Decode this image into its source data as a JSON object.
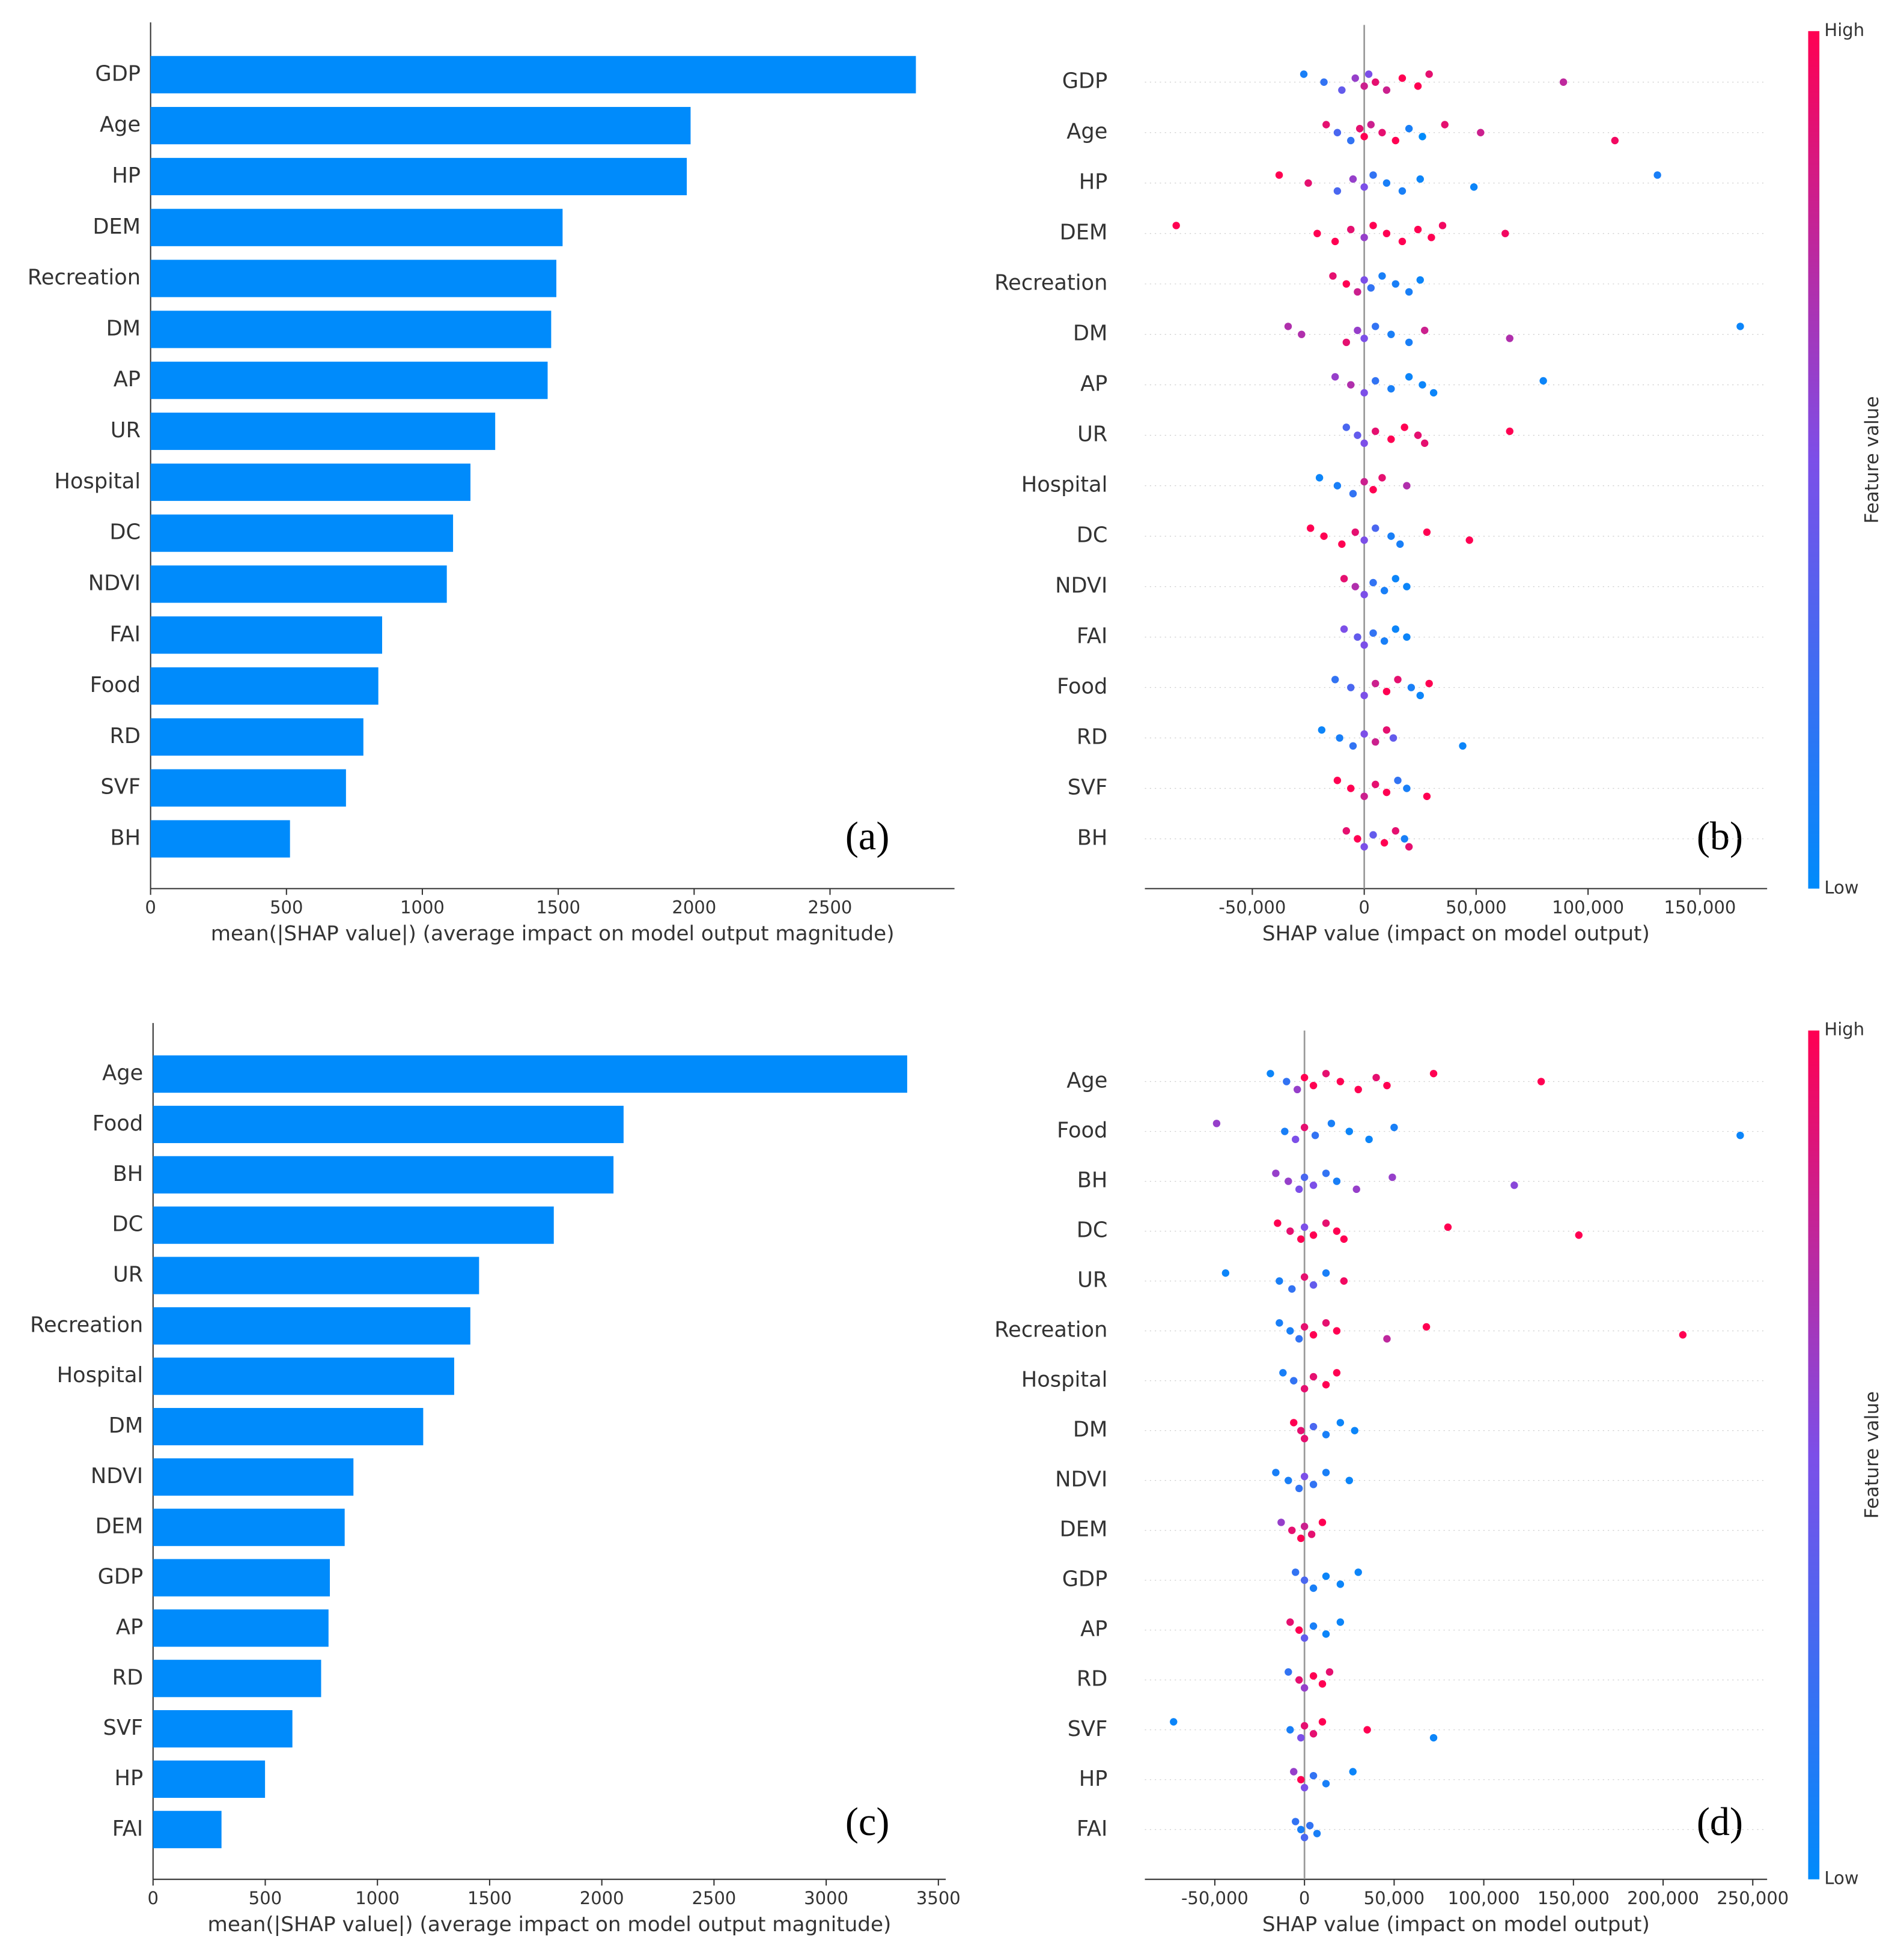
{
  "chart_data": [
    {
      "type": "bar",
      "annotation": "(a)",
      "xlabel": "mean(|SHAP value|) (average impact on model output magnitude)",
      "color": "#008bfb",
      "categories": [
        "GDP",
        "Age",
        "HP",
        "DEM",
        "Recreation",
        "DM",
        "AP",
        "UR",
        "Hospital",
        "DC",
        "NDVI",
        "FAI",
        "Food",
        "RD",
        "SVF",
        "BH"
      ],
      "values": [
        2816,
        1987,
        1973,
        1516,
        1493,
        1474,
        1461,
        1268,
        1177,
        1113,
        1090,
        852,
        838,
        783,
        719,
        513
      ],
      "xlim": [
        0,
        2958
      ],
      "xticks": [
        0,
        500,
        1000,
        1500,
        2000,
        2500
      ]
    },
    {
      "type": "beeswarm",
      "annotation": "(b)",
      "xlabel": "SHAP value (impact on model output)",
      "colorbar_label": "Feature value",
      "colorbar_high": "High",
      "colorbar_low": "Low",
      "colormap": [
        "#008bfb",
        "#7c4fe8",
        "#ff0052"
      ],
      "xlim": [
        -98000,
        180000
      ],
      "xticks": [
        {
          "value": -50000,
          "label": "-50,000"
        },
        0,
        {
          "value": 50000,
          "label": "50,000"
        },
        {
          "value": 100000,
          "label": "100,000"
        },
        {
          "value": 150000,
          "label": "150,000"
        }
      ],
      "rows": [
        {
          "name": "GDP",
          "x": [
            -27000,
            -18000,
            -10000,
            -4000,
            0,
            2000,
            5000,
            10000,
            17000,
            24000,
            29000,
            89000
          ],
          "feature_values": [
            0.1,
            0.2,
            0.4,
            0.6,
            0.8,
            0.5,
            0.9,
            0.8,
            1,
            1,
            0.9,
            0.75
          ]
        },
        {
          "name": "Age",
          "x": [
            -17000,
            -12000,
            -6000,
            -2000,
            0,
            3000,
            8000,
            14000,
            20000,
            26000,
            36000,
            52000,
            112000
          ],
          "feature_values": [
            0.9,
            0.3,
            0.2,
            0.9,
            1,
            0.8,
            0.9,
            1,
            0.1,
            0,
            0.9,
            0.8,
            0.95
          ]
        },
        {
          "name": "HP",
          "x": [
            -38000,
            -25000,
            -12000,
            -5000,
            0,
            4000,
            10000,
            17000,
            25000,
            49000,
            131000
          ],
          "feature_values": [
            1,
            0.9,
            0.3,
            0.6,
            0.5,
            0.2,
            0.1,
            0.1,
            0.05,
            0.05,
            0.1
          ]
        },
        {
          "name": "DEM",
          "x": [
            -84000,
            -21000,
            -13000,
            -6000,
            0,
            4000,
            10000,
            17000,
            24000,
            30000,
            35000,
            63000
          ],
          "feature_values": [
            1,
            1,
            1,
            0.9,
            0.6,
            1,
            1,
            1,
            1,
            1,
            0.95,
            0.95
          ]
        },
        {
          "name": "Recreation",
          "x": [
            -14000,
            -8000,
            -3000,
            0,
            3000,
            8000,
            14000,
            20000,
            25000
          ],
          "feature_values": [
            0.9,
            1,
            0.8,
            0.5,
            0.2,
            0.1,
            0.1,
            0.1,
            0.05
          ]
        },
        {
          "name": "DM",
          "x": [
            -34000,
            -28000,
            -8000,
            -3000,
            0,
            5000,
            12000,
            20000,
            27000,
            65000,
            168000
          ],
          "feature_values": [
            0.7,
            0.7,
            0.9,
            0.6,
            0.5,
            0.2,
            0.1,
            0.1,
            0.8,
            0.7,
            0.05
          ]
        },
        {
          "name": "AP",
          "x": [
            -13000,
            -6000,
            0,
            5000,
            12000,
            20000,
            26000,
            31000,
            80000
          ],
          "feature_values": [
            0.6,
            0.7,
            0.5,
            0.2,
            0.1,
            0.05,
            0.05,
            0.05,
            0.05
          ]
        },
        {
          "name": "UR",
          "x": [
            -8000,
            -3000,
            0,
            5000,
            12000,
            18000,
            24000,
            27000,
            65000
          ],
          "feature_values": [
            0.3,
            0.4,
            0.5,
            0.9,
            1,
            1,
            0.9,
            0.9,
            1
          ]
        },
        {
          "name": "Hospital",
          "x": [
            -20000,
            -12000,
            -5000,
            0,
            4000,
            8000,
            19000
          ],
          "feature_values": [
            0.05,
            0.1,
            0.2,
            0.8,
            1,
            0.9,
            0.7
          ]
        },
        {
          "name": "DC",
          "x": [
            -24000,
            -18000,
            -10000,
            -4000,
            0,
            5000,
            12000,
            16000,
            28000,
            47000
          ],
          "feature_values": [
            1,
            1,
            1,
            0.9,
            0.5,
            0.3,
            0.1,
            0.1,
            1,
            1
          ]
        },
        {
          "name": "NDVI",
          "x": [
            -9000,
            -4000,
            0,
            4000,
            9000,
            14000,
            19000
          ],
          "feature_values": [
            0.9,
            0.7,
            0.5,
            0.2,
            0.1,
            0.05,
            0.05
          ]
        },
        {
          "name": "FAI",
          "x": [
            -9000,
            -3000,
            0,
            4000,
            9000,
            14000,
            19000
          ],
          "feature_values": [
            0.5,
            0.4,
            0.5,
            0.2,
            0.1,
            0.05,
            0.05
          ]
        },
        {
          "name": "Food",
          "x": [
            -13000,
            -6000,
            0,
            5000,
            10000,
            15000,
            21000,
            25000,
            29000
          ],
          "feature_values": [
            0.2,
            0.3,
            0.5,
            0.8,
            1,
            0.9,
            0.1,
            0.05,
            1
          ]
        },
        {
          "name": "RD",
          "x": [
            -19000,
            -11000,
            -5000,
            0,
            5000,
            10000,
            13000,
            44000
          ],
          "feature_values": [
            0.05,
            0.1,
            0.2,
            0.5,
            0.8,
            0.9,
            0.4,
            0.05
          ]
        },
        {
          "name": "SVF",
          "x": [
            -12000,
            -6000,
            0,
            5000,
            10000,
            15000,
            19000,
            28000
          ],
          "feature_values": [
            1,
            1,
            0.8,
            0.9,
            1,
            0.2,
            0.1,
            1
          ]
        },
        {
          "name": "BH",
          "x": [
            -8000,
            -3000,
            0,
            4000,
            9000,
            14000,
            18000,
            20000
          ],
          "feature_values": [
            0.9,
            1,
            0.5,
            0.4,
            1,
            0.9,
            0.1,
            0.9
          ]
        }
      ]
    },
    {
      "type": "bar",
      "annotation": "(c)",
      "xlabel": "mean(|SHAP value|) (average impact on model output magnitude)",
      "color": "#008bfb",
      "categories": [
        "Age",
        "Food",
        "BH",
        "DC",
        "UR",
        "Recreation",
        "Hospital",
        "DM",
        "NDVI",
        "DEM",
        "GDP",
        "AP",
        "RD",
        "SVF",
        "HP",
        "FAI"
      ],
      "values": [
        3361,
        2097,
        2052,
        1786,
        1453,
        1414,
        1342,
        1204,
        893,
        854,
        788,
        782,
        749,
        621,
        499,
        305
      ],
      "xlim": [
        0,
        3533
      ],
      "xticks": [
        0,
        500,
        1000,
        1500,
        2000,
        2500,
        3000,
        3500
      ]
    },
    {
      "type": "beeswarm",
      "annotation": "(d)",
      "xlabel": "SHAP value (impact on model output)",
      "colorbar_label": "Feature value",
      "colorbar_high": "High",
      "colorbar_low": "Low",
      "colormap": [
        "#008bfb",
        "#7c4fe8",
        "#ff0052"
      ],
      "xlim": [
        -89000,
        258000
      ],
      "xticks": [
        {
          "value": -50000,
          "label": "-50,000"
        },
        0,
        {
          "value": 50000,
          "label": "50,000"
        },
        {
          "value": 100000,
          "label": "100,000"
        },
        {
          "value": 150000,
          "label": "150,000"
        },
        {
          "value": 200000,
          "label": "200,000"
        },
        {
          "value": 250000,
          "label": "250,000"
        }
      ],
      "rows": [
        {
          "name": "Age",
          "x": [
            -19000,
            -10000,
            -4000,
            0,
            5000,
            12000,
            20000,
            30000,
            40000,
            46000,
            72000,
            132000
          ],
          "feature_values": [
            0.05,
            0.2,
            0.6,
            1,
            1,
            0.9,
            1,
            1,
            0.9,
            1,
            1,
            1
          ]
        },
        {
          "name": "Food",
          "x": [
            -49000,
            -11000,
            -5000,
            0,
            6000,
            15000,
            25000,
            36000,
            50000,
            243000
          ],
          "feature_values": [
            0.6,
            0.1,
            0.5,
            0.9,
            0.2,
            0.1,
            0.05,
            0.05,
            0.1,
            0.05
          ]
        },
        {
          "name": "BH",
          "x": [
            -16000,
            -9000,
            -3000,
            0,
            5000,
            12000,
            18000,
            29000,
            49000,
            117000
          ],
          "feature_values": [
            0.6,
            0.6,
            0.5,
            0.3,
            0.5,
            0.2,
            0.1,
            0.6,
            0.6,
            0.55
          ]
        },
        {
          "name": "DC",
          "x": [
            -15000,
            -8000,
            -2000,
            0,
            5000,
            12000,
            18000,
            22000,
            80000,
            153000
          ],
          "feature_values": [
            1,
            0.9,
            1,
            0.5,
            1,
            0.9,
            1,
            1,
            1,
            1
          ]
        },
        {
          "name": "UR",
          "x": [
            -44000,
            -14000,
            -7000,
            0,
            5000,
            12000,
            22000
          ],
          "feature_values": [
            0.05,
            0.1,
            0.2,
            0.9,
            0.4,
            0.1,
            0.95
          ]
        },
        {
          "name": "Recreation",
          "x": [
            -14000,
            -8000,
            -3000,
            0,
            5000,
            12000,
            18000,
            46000,
            68000,
            211000
          ],
          "feature_values": [
            0.1,
            0.1,
            0.2,
            0.9,
            1,
            0.9,
            1,
            0.75,
            1,
            1
          ]
        },
        {
          "name": "Hospital",
          "x": [
            -12000,
            -6000,
            0,
            5000,
            12000,
            18000
          ],
          "feature_values": [
            0.1,
            0.2,
            0.9,
            0.9,
            1,
            1
          ]
        },
        {
          "name": "DM",
          "x": [
            -6000,
            -2000,
            0,
            5000,
            12000,
            20000,
            28000
          ],
          "feature_values": [
            1,
            0.9,
            0.9,
            0.3,
            0.1,
            0.05,
            0.05
          ]
        },
        {
          "name": "NDVI",
          "x": [
            -16000,
            -9000,
            -3000,
            0,
            5000,
            12000,
            25000
          ],
          "feature_values": [
            0.1,
            0.1,
            0.2,
            0.5,
            0.2,
            0.1,
            0.05
          ]
        },
        {
          "name": "DEM",
          "x": [
            -13000,
            -7000,
            -2000,
            0,
            4000,
            10000
          ],
          "feature_values": [
            0.6,
            0.9,
            1,
            0.8,
            0.9,
            1
          ]
        },
        {
          "name": "GDP",
          "x": [
            -5000,
            0,
            5000,
            12000,
            20000,
            30000
          ],
          "feature_values": [
            0.2,
            0.3,
            0.1,
            0.05,
            0.05,
            0.05
          ]
        },
        {
          "name": "AP",
          "x": [
            -8000,
            -3000,
            0,
            5000,
            12000,
            20000
          ],
          "feature_values": [
            0.9,
            1,
            0.4,
            0.1,
            0.05,
            0.05
          ]
        },
        {
          "name": "RD",
          "x": [
            -9000,
            -3000,
            0,
            5000,
            10000,
            14000
          ],
          "feature_values": [
            0.2,
            0.9,
            0.6,
            1,
            1,
            0.9
          ]
        },
        {
          "name": "SVF",
          "x": [
            -73000,
            -8000,
            -2000,
            0,
            5000,
            10000,
            35000,
            72000
          ],
          "feature_values": [
            0.05,
            0.1,
            0.5,
            0.9,
            0.9,
            1,
            1,
            0.05
          ]
        },
        {
          "name": "HP",
          "x": [
            -6000,
            -2000,
            0,
            5000,
            12000,
            27000
          ],
          "feature_values": [
            0.6,
            1,
            0.5,
            0.2,
            0.1,
            0.05
          ]
        },
        {
          "name": "FAI",
          "x": [
            -5000,
            -2000,
            0,
            3000,
            7000
          ],
          "feature_values": [
            0.2,
            0.1,
            0.3,
            0.2,
            0.1
          ]
        }
      ]
    }
  ]
}
